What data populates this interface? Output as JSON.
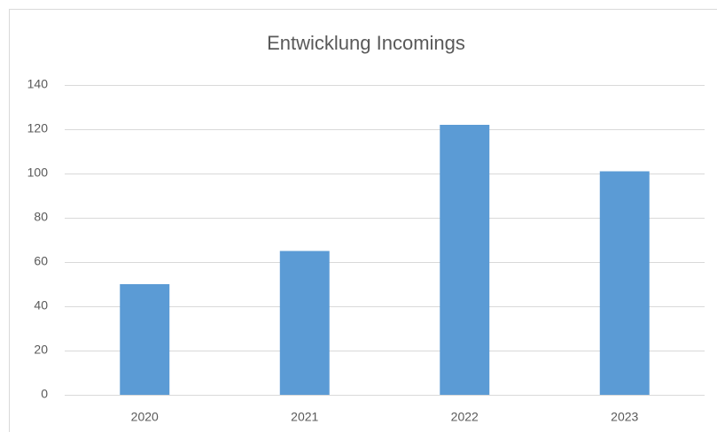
{
  "chart_data": {
    "type": "bar",
    "title": "Entwicklung Incomings",
    "categories": [
      "2020",
      "2021",
      "2022",
      "2023"
    ],
    "values": [
      50,
      65,
      122,
      101
    ],
    "color": "#5b9bd5",
    "ylim": [
      0,
      140
    ],
    "yticks": [
      0,
      20,
      40,
      60,
      80,
      100,
      120,
      140
    ],
    "grid": true
  }
}
